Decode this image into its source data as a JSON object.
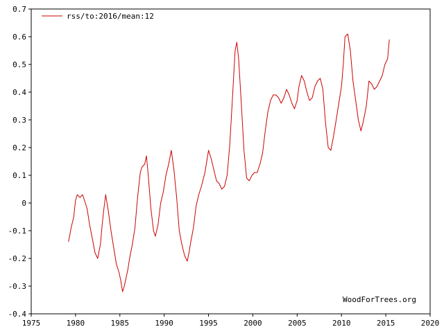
{
  "chart_data": {
    "type": "line",
    "title": "",
    "xlabel": "",
    "ylabel": "",
    "xlim": [
      1975,
      2020
    ],
    "ylim": [
      -0.4,
      0.7
    ],
    "x_ticks": [
      1975,
      1980,
      1985,
      1990,
      1995,
      2000,
      2005,
      2010,
      2015,
      2020
    ],
    "y_ticks": [
      -0.4,
      -0.3,
      -0.2,
      -0.1,
      0,
      0.1,
      0.2,
      0.3,
      0.4,
      0.5,
      0.6,
      0.7
    ],
    "x_tick_labels": [
      "1975",
      "1980",
      "1985",
      "1990",
      "1995",
      "2000",
      "2005",
      "2010",
      "2015",
      "2020"
    ],
    "y_tick_labels": [
      "-0.4",
      "-0.3",
      "-0.2",
      "-0.1",
      "0",
      "0.1",
      "0.2",
      "0.3",
      "0.4",
      "0.5",
      "0.6",
      "0.7"
    ],
    "legend_position": "top-left",
    "grid": false,
    "series": [
      {
        "name": "rss/to:2016/mean:12",
        "color": "#cc0000",
        "x": [
          1979.2,
          1979.5,
          1979.8,
          1980.0,
          1980.2,
          1980.5,
          1980.8,
          1981.0,
          1981.3,
          1981.6,
          1981.9,
          1982.2,
          1982.5,
          1982.8,
          1983.0,
          1983.2,
          1983.4,
          1983.7,
          1984.0,
          1984.3,
          1984.6,
          1984.9,
          1985.1,
          1985.3,
          1985.5,
          1985.7,
          1985.9,
          1986.1,
          1986.4,
          1986.7,
          1987.0,
          1987.3,
          1987.5,
          1987.8,
          1988.0,
          1988.2,
          1988.5,
          1988.8,
          1989.0,
          1989.3,
          1989.6,
          1989.9,
          1990.2,
          1990.5,
          1990.8,
          1991.1,
          1991.4,
          1991.7,
          1992.0,
          1992.3,
          1992.6,
          1992.8,
          1993.0,
          1993.3,
          1993.6,
          1993.9,
          1994.2,
          1994.6,
          1995.0,
          1995.3,
          1995.6,
          1995.9,
          1996.2,
          1996.5,
          1996.8,
          1997.1,
          1997.4,
          1997.7,
          1998.0,
          1998.2,
          1998.4,
          1998.7,
          1999.0,
          1999.3,
          1999.6,
          1999.9,
          2000.2,
          2000.5,
          2000.8,
          2001.1,
          2001.4,
          2001.7,
          2002.0,
          2002.3,
          2002.6,
          2002.9,
          2003.2,
          2003.5,
          2003.8,
          2004.1,
          2004.4,
          2004.7,
          2005.0,
          2005.2,
          2005.5,
          2005.8,
          2006.1,
          2006.4,
          2006.7,
          2007.0,
          2007.3,
          2007.6,
          2007.9,
          2008.2,
          2008.5,
          2008.8,
          2009.1,
          2009.4,
          2009.7,
          2010.0,
          2010.2,
          2010.4,
          2010.7,
          2011.0,
          2011.3,
          2011.6,
          2011.9,
          2012.2,
          2012.5,
          2012.8,
          2013.1,
          2013.4,
          2013.7,
          2014.0,
          2014.3,
          2014.6,
          2014.9,
          2015.2,
          2015.4
        ],
        "values": [
          -0.14,
          -0.09,
          -0.05,
          0.01,
          0.03,
          0.02,
          0.03,
          0.01,
          -0.02,
          -0.08,
          -0.13,
          -0.18,
          -0.2,
          -0.15,
          -0.08,
          -0.02,
          0.03,
          -0.03,
          -0.1,
          -0.16,
          -0.22,
          -0.25,
          -0.28,
          -0.32,
          -0.3,
          -0.27,
          -0.24,
          -0.2,
          -0.15,
          -0.09,
          0.02,
          0.11,
          0.13,
          0.14,
          0.17,
          0.1,
          -0.02,
          -0.1,
          -0.12,
          -0.08,
          0.0,
          0.04,
          0.1,
          0.14,
          0.19,
          0.12,
          0.02,
          -0.1,
          -0.15,
          -0.19,
          -0.21,
          -0.18,
          -0.14,
          -0.09,
          -0.01,
          0.03,
          0.06,
          0.11,
          0.19,
          0.16,
          0.12,
          0.08,
          0.07,
          0.05,
          0.06,
          0.1,
          0.21,
          0.38,
          0.55,
          0.58,
          0.52,
          0.36,
          0.19,
          0.09,
          0.08,
          0.1,
          0.11,
          0.11,
          0.14,
          0.18,
          0.26,
          0.33,
          0.37,
          0.39,
          0.39,
          0.38,
          0.36,
          0.38,
          0.41,
          0.39,
          0.36,
          0.34,
          0.37,
          0.42,
          0.46,
          0.44,
          0.4,
          0.37,
          0.38,
          0.42,
          0.44,
          0.45,
          0.41,
          0.29,
          0.2,
          0.19,
          0.24,
          0.3,
          0.36,
          0.42,
          0.5,
          0.6,
          0.61,
          0.55,
          0.44,
          0.37,
          0.3,
          0.26,
          0.3,
          0.35,
          0.44,
          0.43,
          0.41,
          0.42,
          0.44,
          0.46,
          0.5,
          0.52,
          0.59
        ]
      }
    ],
    "annotations": [
      "WoodForTrees.org"
    ]
  }
}
